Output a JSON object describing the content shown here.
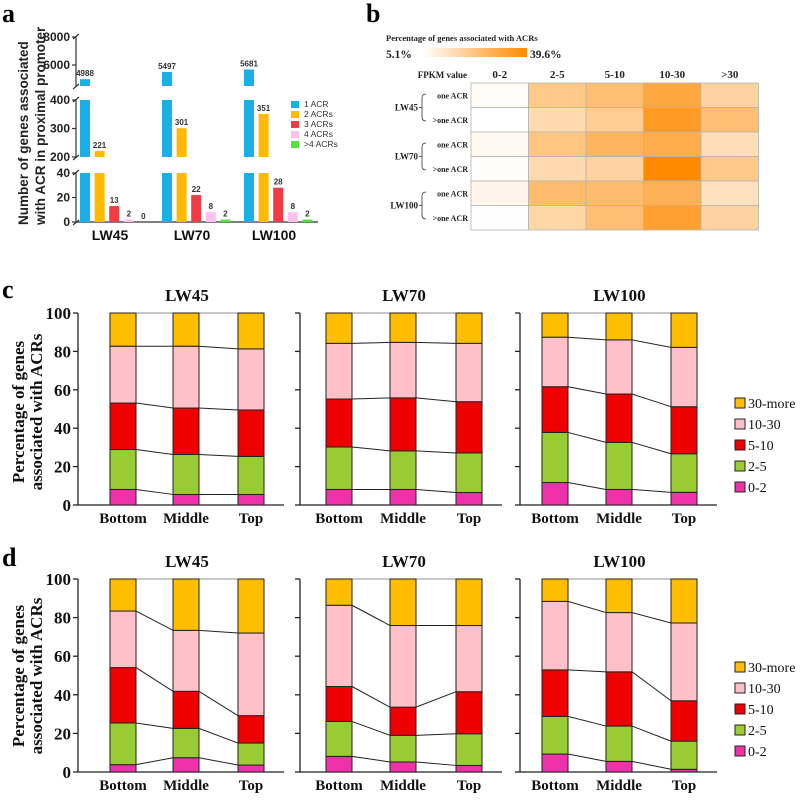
{
  "figure": {
    "panels": [
      "a",
      "b",
      "c",
      "d"
    ]
  },
  "chart_data": [
    {
      "panel": "a",
      "type": "bar",
      "ylabel_lines": [
        "Number of genes associated",
        "with ACR in proximal promoter"
      ],
      "categories": [
        "LW45",
        "LW70",
        "LW100"
      ],
      "axis_segments": [
        {
          "range": [
            0,
            40
          ],
          "ticks": [
            "0",
            "20",
            "40"
          ],
          "tick_values": [
            0,
            20,
            40
          ]
        },
        {
          "range": [
            200,
            400
          ],
          "ticks": [
            "200",
            "300",
            "400"
          ],
          "tick_values": [
            200,
            300,
            400
          ]
        },
        {
          "range": [
            4500,
            8000
          ],
          "ticks": [
            "6000",
            "8000"
          ],
          "tick_values": [
            6000,
            8000
          ]
        }
      ],
      "series": [
        {
          "name": "1 ACR",
          "color": "#1AAFE6",
          "values": [
            4988,
            5497,
            5681
          ]
        },
        {
          "name": "2 ACRs",
          "color": "#FFBA00",
          "values": [
            221,
            301,
            351
          ]
        },
        {
          "name": "3 ACRs",
          "color": "#F03C46",
          "values": [
            13,
            22,
            28
          ]
        },
        {
          "name": "4 ACRs",
          "color": "#FFC0EE",
          "values": [
            2,
            8,
            8
          ]
        },
        {
          "name": ">4 ACRs",
          "color": "#55E23A",
          "values": [
            0,
            2,
            2
          ]
        }
      ],
      "legend_position": "right"
    },
    {
      "panel": "b",
      "type": "heatmap",
      "title": "Percentage of genes associated with ACRs",
      "scale_min_label": "5.1%",
      "scale_max_label": "39.6%",
      "scale_range": [
        5.1,
        39.6
      ],
      "color_low": "#FFFFFF",
      "color_high": "#FF8A00",
      "corner_label": "FPKM value",
      "columns": [
        "0-2",
        "2-5",
        "5-10",
        "10-30",
        ">30"
      ],
      "groups": [
        {
          "name": "LW45",
          "rows": [
            "one ACR",
            ">one ACR"
          ]
        },
        {
          "name": "LW70",
          "rows": [
            "one ACR",
            ">one ACR"
          ]
        },
        {
          "name": "LW100",
          "rows": [
            "one ACR",
            ">one ACR"
          ]
        }
      ],
      "values": [
        [
          6.0,
          21.0,
          24.0,
          31.0,
          18.0
        ],
        [
          5.1,
          16.0,
          20.0,
          35.0,
          24.0
        ],
        [
          7.0,
          22.0,
          27.0,
          29.0,
          15.0
        ],
        [
          5.5,
          16.0,
          18.0,
          39.6,
          21.0
        ],
        [
          8.0,
          25.0,
          25.0,
          28.0,
          14.0
        ],
        [
          5.3,
          17.0,
          24.0,
          33.0,
          18.0
        ]
      ]
    },
    {
      "panel": "c",
      "type": "bar",
      "stacked": true,
      "ylabel_lines": [
        "Percentage of genes",
        "associated with ACRs"
      ],
      "ylim": [
        0,
        100
      ],
      "yticks": [
        "0",
        "20",
        "40",
        "60",
        "80",
        "100"
      ],
      "categories": [
        "Bottom",
        "Middle",
        "Top"
      ],
      "stack_order": [
        "0-2",
        "2-5",
        "5-10",
        "10-30",
        "30-more"
      ],
      "colors": [
        "#EE33AA",
        "#99CC33",
        "#EE0000",
        "#FFC0C8",
        "#FFBF00"
      ],
      "legend": [
        "30-more",
        "10-30",
        "5-10",
        "2-5",
        "0-2"
      ],
      "legend_position": "right",
      "subplots": [
        {
          "title": "LW45",
          "cumulative": [
            [
              8.1,
              28.9,
              53.1,
              82.7,
              100
            ],
            [
              5.5,
              26.3,
              50.5,
              82.7,
              100
            ],
            [
              5.5,
              25.3,
              49.5,
              81.3,
              100
            ]
          ]
        },
        {
          "title": "LW70",
          "cumulative": [
            [
              8.1,
              30.2,
              55.2,
              84.2,
              100
            ],
            [
              8.1,
              28.2,
              55.8,
              84.7,
              100
            ],
            [
              6.5,
              27.1,
              53.8,
              84.2,
              100
            ]
          ]
        },
        {
          "title": "LW100",
          "cumulative": [
            [
              11.7,
              37.8,
              61.6,
              87.4,
              100
            ],
            [
              8.1,
              32.6,
              57.8,
              86.0,
              100
            ],
            [
              6.6,
              26.7,
              51.2,
              82.1,
              100
            ]
          ]
        }
      ]
    },
    {
      "panel": "d",
      "type": "bar",
      "stacked": true,
      "ylabel_lines": [
        "Percentage of genes",
        "associated with ACRs"
      ],
      "ylim": [
        0,
        100
      ],
      "yticks": [
        "0",
        "20",
        "40",
        "60",
        "80",
        "100"
      ],
      "categories": [
        "Bottom",
        "Middle",
        "Top"
      ],
      "stack_order": [
        "0-2",
        "2-5",
        "5-10",
        "10-30",
        "30-more"
      ],
      "colors": [
        "#EE33AA",
        "#99CC33",
        "#EE0000",
        "#FFC0C8",
        "#FFBF00"
      ],
      "legend": [
        "30-more",
        "10-30",
        "5-10",
        "2-5",
        "0-2"
      ],
      "legend_position": "right",
      "subplots": [
        {
          "title": "LW45",
          "cumulative": [
            [
              3.8,
              25.4,
              54.1,
              83.4,
              100
            ],
            [
              7.4,
              22.6,
              41.8,
              73.4,
              100
            ],
            [
              3.6,
              15.0,
              29.2,
              72.0,
              100
            ]
          ]
        },
        {
          "title": "LW70",
          "cumulative": [
            [
              8.1,
              26.2,
              44.3,
              86.4,
              100
            ],
            [
              5.2,
              19.0,
              33.6,
              75.9,
              100
            ],
            [
              3.4,
              19.8,
              41.6,
              75.9,
              100
            ]
          ]
        },
        {
          "title": "LW100",
          "cumulative": [
            [
              9.3,
              28.8,
              52.9,
              88.4,
              100
            ],
            [
              5.5,
              23.8,
              51.9,
              82.6,
              100
            ],
            [
              1.4,
              16.0,
              36.9,
              77.2,
              100
            ]
          ]
        }
      ]
    }
  ]
}
